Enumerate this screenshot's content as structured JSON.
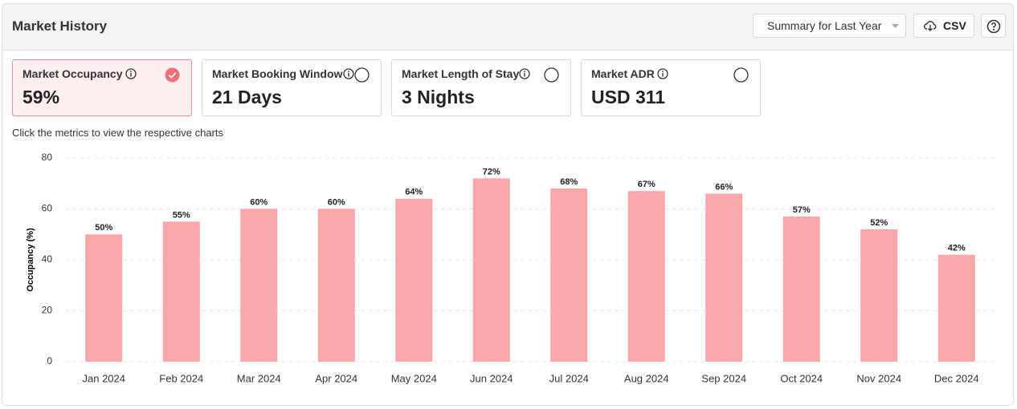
{
  "header": {
    "title": "Market History",
    "period_select": "Summary for Last Year",
    "csv_button": "CSV"
  },
  "metrics": [
    {
      "label": "Market Occupancy",
      "value": "59%",
      "selected": true
    },
    {
      "label": "Market Booking Window",
      "value": "21 Days",
      "selected": false
    },
    {
      "label": "Market Length of Stay",
      "value": "3 Nights",
      "selected": false
    },
    {
      "label": "Market ADR",
      "value": "USD 311",
      "selected": false
    }
  ],
  "hint": "Click the metrics to view the respective charts",
  "chart_data": {
    "type": "bar",
    "y_label": "Occupancy (%)",
    "categories": [
      "Jan 2024",
      "Feb 2024",
      "Mar 2024",
      "Apr 2024",
      "May 2024",
      "Jun 2024",
      "Jul 2024",
      "Aug 2024",
      "Sep 2024",
      "Oct 2024",
      "Nov 2024",
      "Dec 2024"
    ],
    "values": [
      50,
      55,
      60,
      60,
      64,
      72,
      68,
      67,
      66,
      57,
      52,
      42
    ],
    "value_labels": [
      "50%",
      "55%",
      "60%",
      "60%",
      "64%",
      "72%",
      "68%",
      "67%",
      "66%",
      "57%",
      "52%",
      "42%"
    ],
    "color": "#f9a7aa",
    "ylim": [
      0,
      80
    ],
    "yticks": [
      0,
      20,
      40,
      60,
      80
    ],
    "grid": true
  }
}
